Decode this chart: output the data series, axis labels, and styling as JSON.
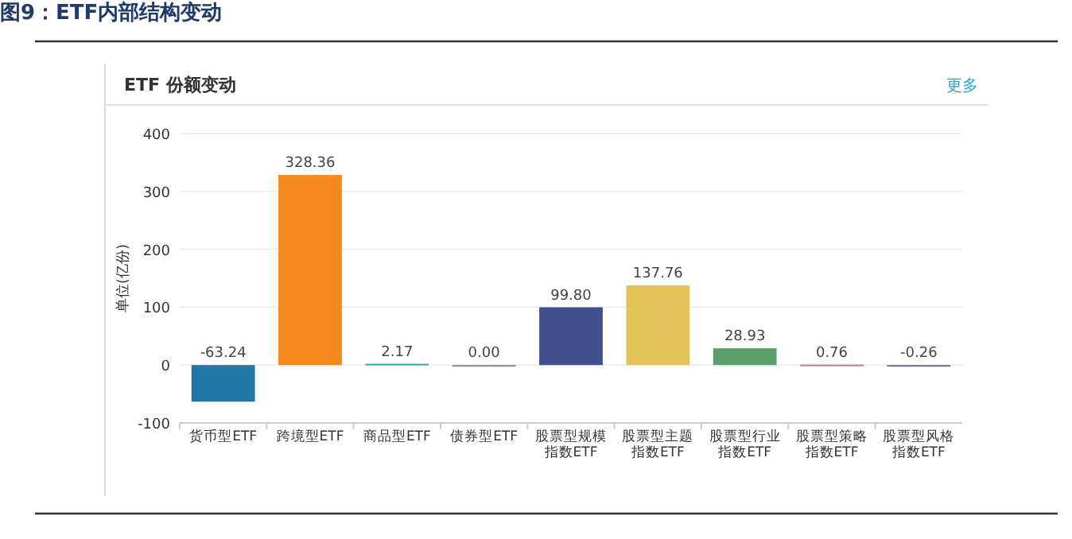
{
  "chart_data": {
    "type": "bar",
    "title": "图9：ETF内部结构变动",
    "subtitle": "ETF 份额变动",
    "ylabel": "单位(亿份)",
    "annotations": [
      "更多"
    ],
    "categories": [
      "货币型ETF",
      "跨境型ETF",
      "商品型ETF",
      "债券型ETF",
      "股票型规模指数ETF",
      "股票型主题指数ETF",
      "股票型行业指数ETF",
      "股票型策略指数ETF",
      "股票型风格指数ETF"
    ],
    "values": [
      -63.24,
      328.36,
      2.17,
      0.0,
      99.8,
      137.76,
      28.93,
      0.76,
      -0.26
    ],
    "value_labels": [
      "-63.24",
      "328.36",
      "2.17",
      "0.00",
      "99.80",
      "137.76",
      "28.93",
      "0.76",
      "-0.26"
    ],
    "colors": [
      "#2177a8",
      "#f5891d",
      "#3aaaa0",
      "#8c8c8c",
      "#424f8e",
      "#e5c55a",
      "#5a9e6a",
      "#c77c7c",
      "#6f6f9f"
    ],
    "ylim": [
      -100,
      400
    ],
    "yticks": [
      -100,
      0,
      100,
      200,
      300,
      400
    ],
    "grid": "y"
  }
}
